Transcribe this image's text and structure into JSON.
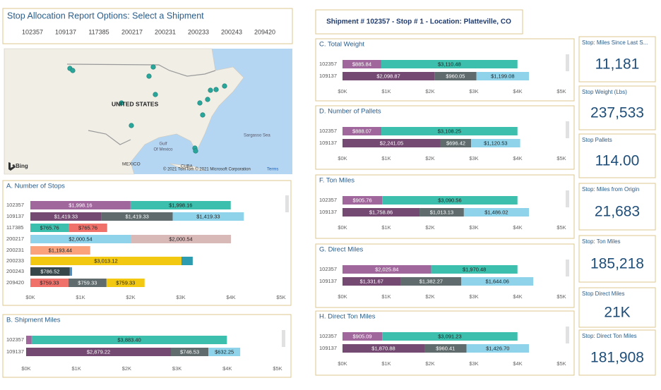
{
  "slicer": {
    "title": "Stop Allocation Report Options: Select a Shipment",
    "items": [
      "102357",
      "109137",
      "117385",
      "200217",
      "200231",
      "200233",
      "200243",
      "209420"
    ]
  },
  "header": {
    "title": "Shipment # 102357 - Stop # 1 - Location: Platteville, CO"
  },
  "map": {
    "labels": [
      "UNITED STATES",
      "Sargasso Sea",
      "Gulf",
      "Of Mexico",
      "MEXICO",
      "CUBA",
      "Bing",
      "© 2021 TomTom © 2021 Microsoft Corporation",
      "Terms"
    ]
  },
  "cards": [
    {
      "label": "Stop: Miles Since Last S...",
      "value": "11,181"
    },
    {
      "label": "Stop Weight (Lbs)",
      "value": "237,533"
    },
    {
      "label": "Stop Pallets",
      "value": "114.00"
    },
    {
      "label": "Stop: Miles from Origin",
      "value": "21,683"
    },
    {
      "label": "Stop: Ton Miles",
      "value": "185,218"
    },
    {
      "label": "Stop Direct Miles",
      "value": "21K"
    },
    {
      "label": "Stop: Direct Ton Miles",
      "value": "181,908"
    }
  ],
  "chart_data": [
    {
      "type": "bar",
      "orientation": "horizontal",
      "stacked": true,
      "title": "A. Number of Stops",
      "categories": [
        "102357",
        "109137",
        "117385",
        "200217",
        "200231",
        "200233",
        "200243",
        "209420"
      ],
      "series": [
        {
          "colors": [
            "#a0679c",
            "#744a73",
            "#3dbfad",
            "#8fd3ea",
            "#f9a27c",
            "#f2c811",
            "#374649",
            "#f0706a"
          ],
          "values": [
            1998.16,
            1419.33,
            765.76,
            2000.54,
            1193.44,
            3013.12,
            786.52,
            759.33
          ],
          "value_labels": [
            "$1,998.16",
            "$1,419.33",
            "$765.76",
            "$2,000.54",
            "$1,193.44",
            "$3,013.12",
            "$786.52",
            "$759.33"
          ]
        },
        {
          "colors": [
            "#3dbfad",
            "#5f6b6d",
            "#f0706a",
            "#d9b8b8",
            null,
            "#2e9cb0",
            "#4a90c8",
            "#5f6b6d"
          ],
          "values": [
            1998.16,
            1419.33,
            765.76,
            2000.54,
            null,
            225,
            45,
            759.33
          ],
          "value_labels": [
            "$1,998.16",
            "$1,419.33",
            "$765.76",
            "$2,000.54",
            null,
            null,
            null,
            "$759.33"
          ]
        },
        {
          "colors": [
            null,
            "#8fd3ea",
            null,
            null,
            null,
            null,
            null,
            "#f2c811"
          ],
          "values": [
            null,
            1419.33,
            null,
            null,
            null,
            null,
            null,
            759.33
          ],
          "value_labels": [
            null,
            "$1,419.33",
            null,
            null,
            null,
            null,
            null,
            "$759.33"
          ]
        }
      ],
      "xlim": [
        0,
        5000
      ],
      "xticks": [
        {
          "value": 0,
          "label": "$0K"
        },
        {
          "value": 1000,
          "label": "$1K"
        },
        {
          "value": 2000,
          "label": "$2K"
        },
        {
          "value": 3000,
          "label": "$3K"
        },
        {
          "value": 4000,
          "label": "$4K"
        },
        {
          "value": 5000,
          "label": "$5K"
        }
      ]
    },
    {
      "type": "bar",
      "orientation": "horizontal",
      "stacked": true,
      "title": "B. Shipment Miles",
      "categories": [
        "102357",
        "109137"
      ],
      "series": [
        {
          "colors": [
            "#a0679c",
            "#744a73"
          ],
          "values": [
            110,
            2879.22
          ],
          "value_labels": [
            null,
            "$2,879.22"
          ]
        },
        {
          "colors": [
            "#3dbfad",
            "#5f6b6d"
          ],
          "values": [
            3883.4,
            746.53
          ],
          "value_labels": [
            "$3,883.40",
            "$746.53"
          ]
        },
        {
          "colors": [
            null,
            "#8fd3ea"
          ],
          "values": [
            null,
            632.25
          ],
          "value_labels": [
            null,
            "$632.25"
          ]
        }
      ],
      "xlim": [
        0,
        5000
      ],
      "xticks": [
        {
          "value": 0,
          "label": "$0K"
        },
        {
          "value": 1000,
          "label": "$1K"
        },
        {
          "value": 2000,
          "label": "$2K"
        },
        {
          "value": 3000,
          "label": "$3K"
        },
        {
          "value": 4000,
          "label": "$4K"
        },
        {
          "value": 5000,
          "label": "$5K"
        }
      ]
    },
    {
      "type": "bar",
      "orientation": "horizontal",
      "stacked": true,
      "title": "C. Total Weight",
      "categories": [
        "102357",
        "109137"
      ],
      "series": [
        {
          "colors": [
            "#a0679c",
            "#744a73"
          ],
          "values": [
            885.84,
            2098.87
          ],
          "value_labels": [
            "$885.84",
            "$2,098.87"
          ]
        },
        {
          "colors": [
            "#3dbfad",
            "#5f6b6d"
          ],
          "values": [
            3110.48,
            960.05
          ],
          "value_labels": [
            "$3,110.48",
            "$960.05"
          ]
        },
        {
          "colors": [
            null,
            "#8fd3ea"
          ],
          "values": [
            null,
            1199.08
          ],
          "value_labels": [
            null,
            "$1,199.08"
          ]
        }
      ],
      "xlim": [
        0,
        5000
      ],
      "xticks": [
        {
          "value": 0,
          "label": "$0K"
        },
        {
          "value": 1000,
          "label": "$1K"
        },
        {
          "value": 2000,
          "label": "$2K"
        },
        {
          "value": 3000,
          "label": "$3K"
        },
        {
          "value": 4000,
          "label": "$4K"
        },
        {
          "value": 5000,
          "label": "$5K"
        }
      ]
    },
    {
      "type": "bar",
      "orientation": "horizontal",
      "stacked": true,
      "title": "D. Number of Pallets",
      "categories": [
        "102357",
        "109137"
      ],
      "series": [
        {
          "colors": [
            "#a0679c",
            "#744a73"
          ],
          "values": [
            888.07,
            2241.05
          ],
          "value_labels": [
            "$888.07",
            "$2,241.05"
          ]
        },
        {
          "colors": [
            "#3dbfad",
            "#5f6b6d"
          ],
          "values": [
            3108.25,
            696.42
          ],
          "value_labels": [
            "$3,108.25",
            "$696.42"
          ]
        },
        {
          "colors": [
            null,
            "#8fd3ea"
          ],
          "values": [
            null,
            1120.53
          ],
          "value_labels": [
            null,
            "$1,120.53"
          ]
        }
      ],
      "xlim": [
        0,
        5000
      ],
      "xticks": [
        {
          "value": 0,
          "label": "$0K"
        },
        {
          "value": 1000,
          "label": "$1K"
        },
        {
          "value": 2000,
          "label": "$2K"
        },
        {
          "value": 3000,
          "label": "$3K"
        },
        {
          "value": 4000,
          "label": "$4K"
        },
        {
          "value": 5000,
          "label": "$5K"
        }
      ]
    },
    {
      "type": "bar",
      "orientation": "horizontal",
      "stacked": true,
      "title": "F. Ton Miles",
      "categories": [
        "102357",
        "109137"
      ],
      "series": [
        {
          "colors": [
            "#a0679c",
            "#744a73"
          ],
          "values": [
            905.76,
            1758.86
          ],
          "value_labels": [
            "$905.76",
            "$1,758.86"
          ]
        },
        {
          "colors": [
            "#3dbfad",
            "#5f6b6d"
          ],
          "values": [
            3090.56,
            1013.13
          ],
          "value_labels": [
            "$3,090.56",
            "$1,013.13"
          ]
        },
        {
          "colors": [
            null,
            "#8fd3ea"
          ],
          "values": [
            null,
            1486.02
          ],
          "value_labels": [
            null,
            "$1,486.02"
          ]
        }
      ],
      "xlim": [
        0,
        5000
      ],
      "xticks": [
        {
          "value": 0,
          "label": "$0K"
        },
        {
          "value": 1000,
          "label": "$1K"
        },
        {
          "value": 2000,
          "label": "$2K"
        },
        {
          "value": 3000,
          "label": "$3K"
        },
        {
          "value": 4000,
          "label": "$4K"
        },
        {
          "value": 5000,
          "label": "$5K"
        }
      ]
    },
    {
      "type": "bar",
      "orientation": "horizontal",
      "stacked": true,
      "title": "G. Direct Miles",
      "categories": [
        "102357",
        "109137"
      ],
      "series": [
        {
          "colors": [
            "#a0679c",
            "#744a73"
          ],
          "values": [
            2025.84,
            1331.67
          ],
          "value_labels": [
            "$2,025.84",
            "$1,331.67"
          ]
        },
        {
          "colors": [
            "#3dbfad",
            "#5f6b6d"
          ],
          "values": [
            1970.48,
            1382.27
          ],
          "value_labels": [
            "$1,970.48",
            "$1,382.27"
          ]
        },
        {
          "colors": [
            null,
            "#8fd3ea"
          ],
          "values": [
            null,
            1644.06
          ],
          "value_labels": [
            null,
            "$1,644.06"
          ]
        }
      ],
      "xlim": [
        0,
        5000
      ],
      "xticks": [
        {
          "value": 0,
          "label": "$0K"
        },
        {
          "value": 1000,
          "label": "$1K"
        },
        {
          "value": 2000,
          "label": "$2K"
        },
        {
          "value": 3000,
          "label": "$3K"
        },
        {
          "value": 4000,
          "label": "$4K"
        },
        {
          "value": 5000,
          "label": "$5K"
        }
      ]
    },
    {
      "type": "bar",
      "orientation": "horizontal",
      "stacked": true,
      "title": "H. Direct Ton Miles",
      "categories": [
        "102357",
        "109137"
      ],
      "series": [
        {
          "colors": [
            "#a0679c",
            "#744a73"
          ],
          "values": [
            905.09,
            1870.88
          ],
          "value_labels": [
            "$905.09",
            "$1,870.88"
          ]
        },
        {
          "colors": [
            "#3dbfad",
            "#5f6b6d"
          ],
          "values": [
            3091.23,
            960.41
          ],
          "value_labels": [
            "$3,091.23",
            "$960.41"
          ]
        },
        {
          "colors": [
            null,
            "#8fd3ea"
          ],
          "values": [
            null,
            1426.7
          ],
          "value_labels": [
            null,
            "$1,426.70"
          ]
        }
      ],
      "xlim": [
        0,
        5000
      ],
      "xticks": [
        {
          "value": 0,
          "label": "$0K"
        },
        {
          "value": 1000,
          "label": "$1K"
        },
        {
          "value": 2000,
          "label": "$2K"
        },
        {
          "value": 3000,
          "label": "$3K"
        },
        {
          "value": 4000,
          "label": "$4K"
        },
        {
          "value": 5000,
          "label": "$5K"
        }
      ]
    }
  ]
}
